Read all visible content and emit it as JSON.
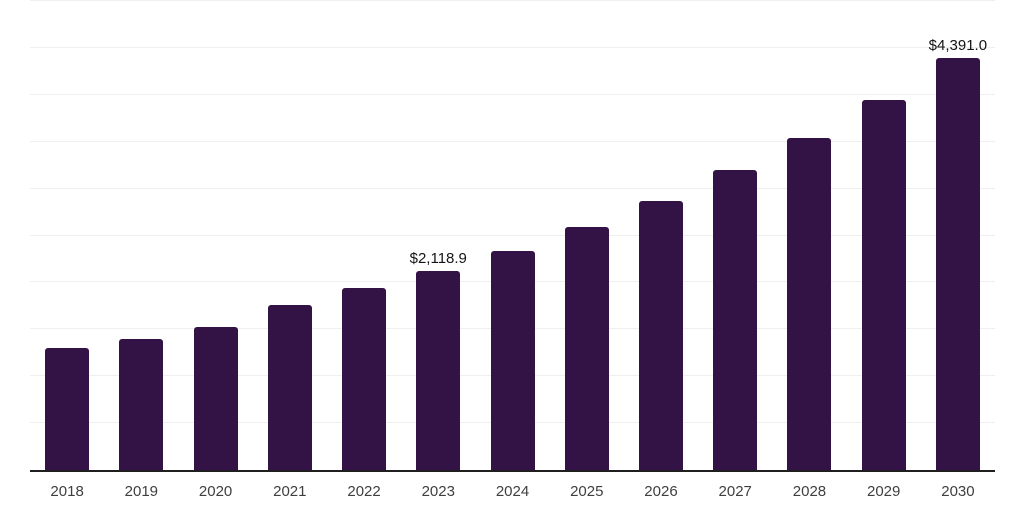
{
  "chart_data": {
    "type": "bar",
    "title": "",
    "xlabel": "",
    "ylabel": "",
    "categories": [
      "2018",
      "2019",
      "2020",
      "2021",
      "2022",
      "2023",
      "2024",
      "2025",
      "2026",
      "2027",
      "2028",
      "2029",
      "2030"
    ],
    "values": [
      1305,
      1400,
      1530,
      1760,
      1940,
      2118.9,
      2330,
      2590,
      2865,
      3195,
      3535,
      3940,
      4391.0
    ],
    "data_labels": [
      {
        "index": 5,
        "text": "$2,118.9"
      },
      {
        "index": 12,
        "text": "$4,391.0"
      }
    ],
    "ylim": [
      0,
      5000
    ],
    "grid_step": 500,
    "grid": true,
    "legend": false,
    "y_tick_labels_shown": false,
    "colors": {
      "bar": "#331246",
      "axis_line": "#1f1f1f",
      "gridline": "#efefef",
      "tick_label": "#3f3f3f",
      "data_label": "#141414",
      "background": "#ffffff"
    }
  }
}
